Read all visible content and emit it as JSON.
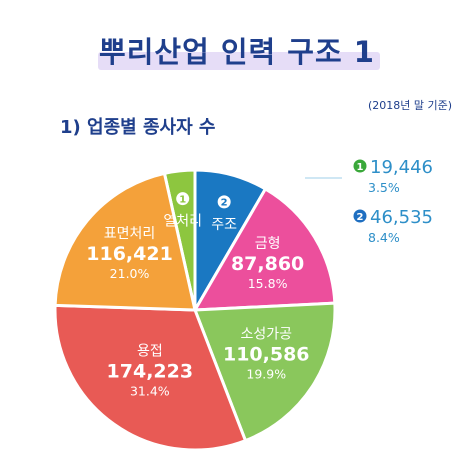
{
  "header": {
    "title": "뿌리산업 인력 구조 1",
    "note": "(2018년 말 기준)",
    "subtitle": "1) 업종별 종사자 수"
  },
  "colors": {
    "title": "#1f3f8c",
    "callout": "#2e8fc8",
    "leader": "#9fcfe8"
  },
  "callouts": [
    {
      "badge": "1",
      "value": "19,446",
      "percent": "3.5%",
      "badge_color": "#3aa83a"
    },
    {
      "badge": "2",
      "value": "46,535",
      "percent": "8.4%",
      "badge_color": "#1f6fc1"
    }
  ],
  "chart_data": {
    "type": "pie",
    "title": "1) 업종별 종사자 수",
    "slices": [
      {
        "label": "열처리",
        "badge": "1",
        "value": 19446,
        "value_label": "19,446",
        "percent": "3.5%",
        "color": "#8dc63f"
      },
      {
        "label": "주조",
        "badge": "2",
        "value": 46535,
        "value_label": "46,535",
        "percent": "8.4%",
        "color": "#1a78c2"
      },
      {
        "label": "금형",
        "value": 87860,
        "value_label": "87,860",
        "percent": "15.8%",
        "color": "#ec4f9c"
      },
      {
        "label": "소성가공",
        "value": 110586,
        "value_label": "110,586",
        "percent": "19.9%",
        "color": "#8ac75c"
      },
      {
        "label": "용접",
        "value": 174223,
        "value_label": "174,223",
        "percent": "31.4%",
        "color": "#e85a55"
      },
      {
        "label": "표면처리",
        "value": 116421,
        "value_label": "116,421",
        "percent": "21.0%",
        "color": "#f4a13a"
      }
    ]
  }
}
